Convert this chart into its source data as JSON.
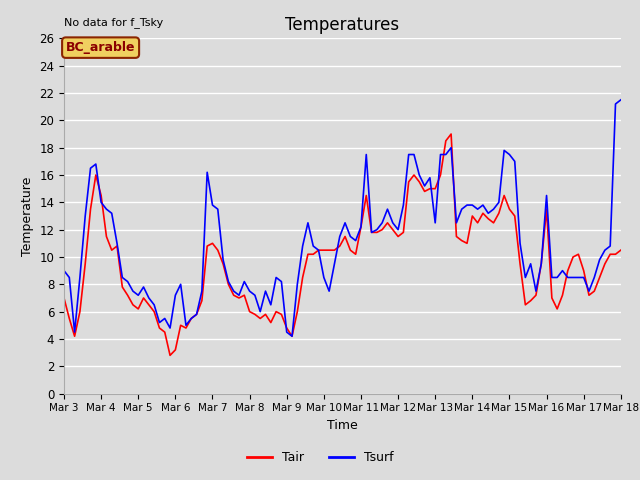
{
  "title": "Temperatures",
  "top_left_text": "No data for f_Tsky",
  "box_label": "BC_arable",
  "xlabel": "Time",
  "ylabel": "Temperature",
  "ylim": [
    0,
    26
  ],
  "legend": [
    "Tair",
    "Tsurf"
  ],
  "line_colors": [
    "red",
    "blue"
  ],
  "bg_color": "#dcdcdc",
  "plot_bg_color": "#dcdcdc",
  "x_ticks": [
    "Mar 3",
    "Mar 4",
    "Mar 5",
    "Mar 6",
    "Mar 7",
    "Mar 8",
    "Mar 9",
    "Mar 10",
    "Mar 11",
    "Mar 12",
    "Mar 13",
    "Mar 14",
    "Mar 15",
    "Mar 16",
    "Mar 17",
    "Mar 18"
  ],
  "tair": [
    7.0,
    5.5,
    4.2,
    6.0,
    9.5,
    13.5,
    16.0,
    14.5,
    11.5,
    10.5,
    10.8,
    7.8,
    7.2,
    6.5,
    6.2,
    7.0,
    6.5,
    6.0,
    4.8,
    4.5,
    2.8,
    3.2,
    5.0,
    4.8,
    5.5,
    5.8,
    6.8,
    10.8,
    11.0,
    10.5,
    9.5,
    8.0,
    7.2,
    7.0,
    7.2,
    6.0,
    5.8,
    5.5,
    5.8,
    5.2,
    6.0,
    5.8,
    4.8,
    4.2,
    6.0,
    8.5,
    10.2,
    10.2,
    10.5,
    10.5,
    10.5,
    10.5,
    10.8,
    11.5,
    10.5,
    10.2,
    12.2,
    14.5,
    11.8,
    11.8,
    12.0,
    12.5,
    12.0,
    11.5,
    11.8,
    15.5,
    16.0,
    15.5,
    14.8,
    15.0,
    15.0,
    16.0,
    18.5,
    19.0,
    11.5,
    11.2,
    11.0,
    13.0,
    12.5,
    13.2,
    12.8,
    12.5,
    13.2,
    14.5,
    13.5,
    13.0,
    9.5,
    6.5,
    6.8,
    7.2,
    9.5,
    13.5,
    7.0,
    6.2,
    7.2,
    9.0,
    10.0,
    10.2,
    9.0,
    7.2,
    7.5,
    8.5,
    9.5,
    10.2,
    10.2,
    10.5
  ],
  "tsurf": [
    9.0,
    8.5,
    4.5,
    8.5,
    13.0,
    16.5,
    16.8,
    14.0,
    13.5,
    13.2,
    11.0,
    8.5,
    8.2,
    7.5,
    7.2,
    7.8,
    7.0,
    6.5,
    5.2,
    5.5,
    4.8,
    7.2,
    8.0,
    5.0,
    5.5,
    5.8,
    7.5,
    16.2,
    13.8,
    13.5,
    9.8,
    8.2,
    7.5,
    7.2,
    8.2,
    7.5,
    7.2,
    6.0,
    7.5,
    6.5,
    8.5,
    8.2,
    4.5,
    4.2,
    8.0,
    10.8,
    12.5,
    10.8,
    10.5,
    8.5,
    7.5,
    9.5,
    11.5,
    12.5,
    11.5,
    11.2,
    12.2,
    17.5,
    11.8,
    12.0,
    12.5,
    13.5,
    12.5,
    12.0,
    13.8,
    17.5,
    17.5,
    16.0,
    15.2,
    15.8,
    12.5,
    17.5,
    17.5,
    18.0,
    12.5,
    13.5,
    13.8,
    13.8,
    13.5,
    13.8,
    13.2,
    13.5,
    14.0,
    17.8,
    17.5,
    17.0,
    11.0,
    8.5,
    9.5,
    7.5,
    9.5,
    14.5,
    8.5,
    8.5,
    9.0,
    8.5,
    8.5,
    8.5,
    8.5,
    7.5,
    8.5,
    9.8,
    10.5,
    10.8,
    21.2,
    21.5
  ]
}
